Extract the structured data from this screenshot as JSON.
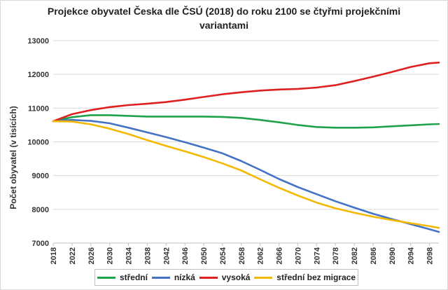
{
  "chart_data": {
    "type": "line",
    "title": "Projekce obyvatel Česka dle ČSÚ (2018) do roku 2100 se čtyřmi projekčními variantami",
    "xlabel": "",
    "ylabel": "Počet obyvatel (v tisících)",
    "xlim": [
      2018,
      2100
    ],
    "ylim": [
      7000,
      13000
    ],
    "y_ticks": [
      "7000",
      "8000",
      "9000",
      "10000",
      "11000",
      "12000",
      "13000"
    ],
    "x_ticks": [
      "2018",
      "2022",
      "2026",
      "2030",
      "2034",
      "2038",
      "2042",
      "2046",
      "2050",
      "2054",
      "2058",
      "2062",
      "2066",
      "2070",
      "2074",
      "2078",
      "2082",
      "2086",
      "2090",
      "2094",
      "2098"
    ],
    "grid": true,
    "legend_position": "bottom",
    "x": [
      2018,
      2022,
      2026,
      2030,
      2034,
      2038,
      2042,
      2046,
      2050,
      2054,
      2058,
      2062,
      2066,
      2070,
      2074,
      2078,
      2082,
      2086,
      2090,
      2094,
      2098,
      2100
    ],
    "series": [
      {
        "name": "střední",
        "color": "#1fa24a",
        "values": [
          10610,
          10730,
          10790,
          10790,
          10770,
          10750,
          10750,
          10750,
          10750,
          10740,
          10710,
          10650,
          10580,
          10500,
          10440,
          10420,
          10420,
          10430,
          10460,
          10490,
          10520,
          10530
        ]
      },
      {
        "name": "nízká",
        "color": "#4472c4",
        "values": [
          10610,
          10650,
          10620,
          10550,
          10420,
          10280,
          10140,
          9990,
          9830,
          9660,
          9430,
          9170,
          8900,
          8660,
          8450,
          8240,
          8050,
          7870,
          7710,
          7560,
          7410,
          7330
        ]
      },
      {
        "name": "vysoká",
        "color": "#e02020",
        "values": [
          10610,
          10820,
          10940,
          11030,
          11090,
          11130,
          11180,
          11250,
          11330,
          11410,
          11470,
          11520,
          11550,
          11570,
          11610,
          11680,
          11800,
          11930,
          12070,
          12220,
          12330,
          12350
        ]
      },
      {
        "name": "střední bez migrace",
        "color": "#f5b800",
        "values": [
          10610,
          10600,
          10520,
          10390,
          10230,
          10050,
          9880,
          9720,
          9550,
          9360,
          9150,
          8890,
          8640,
          8410,
          8200,
          8030,
          7900,
          7780,
          7680,
          7590,
          7500,
          7450
        ]
      }
    ]
  }
}
